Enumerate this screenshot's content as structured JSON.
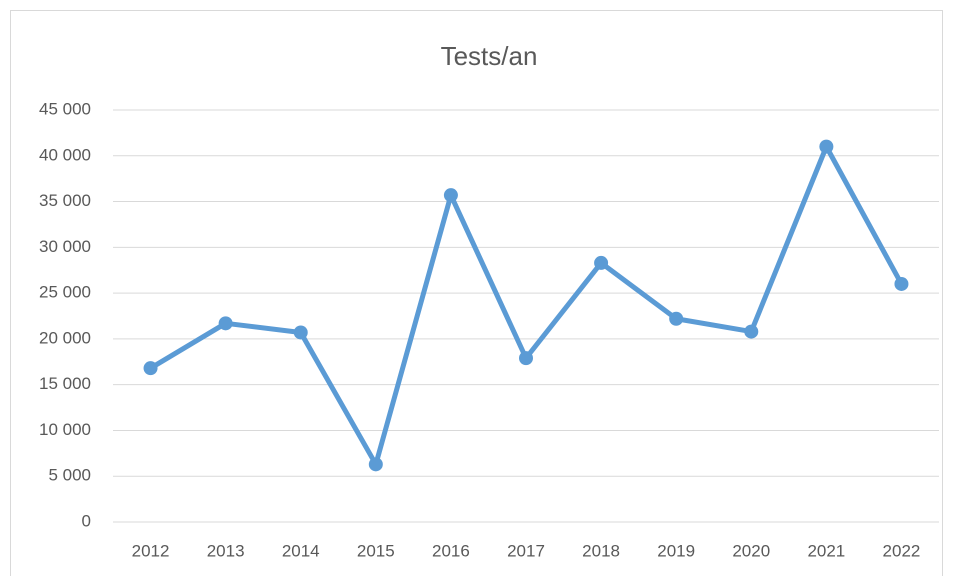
{
  "chart_data": {
    "type": "line",
    "title": "Tests/an",
    "categories": [
      "2012",
      "2013",
      "2014",
      "2015",
      "2016",
      "2017",
      "2018",
      "2019",
      "2020",
      "2021",
      "2022"
    ],
    "series": [
      {
        "name": "Tests/an",
        "color": "#5b9bd5",
        "values": [
          16800,
          21700,
          20700,
          6300,
          35700,
          17900,
          28300,
          22200,
          20800,
          41000,
          26000
        ]
      }
    ],
    "ylim": [
      0,
      45000
    ],
    "yticks": [
      0,
      {
        "value": 5000,
        "label": "5 000"
      },
      {
        "value": 10000,
        "label": "10 000"
      },
      {
        "value": 15000,
        "label": "15 000"
      },
      {
        "value": 20000,
        "label": "20 000"
      },
      {
        "value": 25000,
        "label": "25 000"
      },
      {
        "value": 30000,
        "label": "30 000"
      },
      {
        "value": 35000,
        "label": "35 000"
      },
      {
        "value": 40000,
        "label": "40 000"
      },
      {
        "value": 45000,
        "label": "45 000"
      }
    ],
    "grid": true
  }
}
